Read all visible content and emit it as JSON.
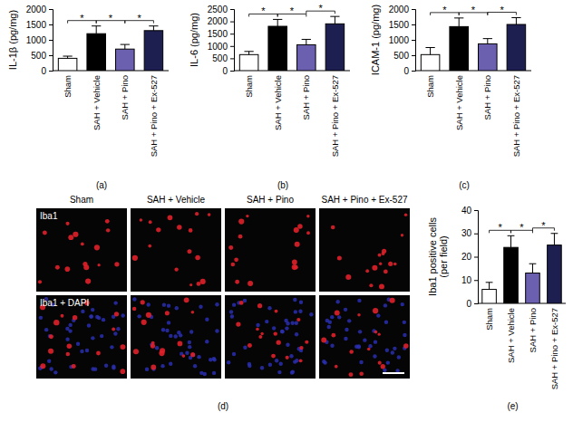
{
  "chart_data": [
    {
      "type": "bar",
      "caption": "(a)",
      "y_label": [
        "IL-1β (pg/mg)"
      ],
      "categories": [
        "Sham",
        "SAH + Vehicle",
        "SAH + Pino",
        "SAH + Pino + Ex-527"
      ],
      "values": [
        400,
        1200,
        700,
        1300
      ],
      "errors": [
        70,
        250,
        150,
        150
      ],
      "colors": [
        "#ffffff",
        "#000000",
        "#6b5fb0",
        "#1c1f4f"
      ],
      "ylim": [
        0,
        2000
      ],
      "yticks": [
        0,
        500,
        1000,
        1500,
        2000
      ],
      "annotations": [
        {
          "from": 0,
          "to": 1,
          "text": "*"
        },
        {
          "from": 1,
          "to": 2,
          "text": "*"
        },
        {
          "from": 2,
          "to": 3,
          "text": "*"
        }
      ]
    },
    {
      "type": "bar",
      "caption": "(b)",
      "y_label": [
        "IL-6 (pg/mg)"
      ],
      "categories": [
        "Sham",
        "SAH + Vehicle",
        "SAH + Pino",
        "SAH + Pino + Ex-527"
      ],
      "values": [
        650,
        1800,
        1050,
        1900
      ],
      "errors": [
        130,
        280,
        220,
        300
      ],
      "colors": [
        "#ffffff",
        "#000000",
        "#6b5fb0",
        "#1c1f4f"
      ],
      "ylim": [
        0,
        2500
      ],
      "yticks": [
        0,
        500,
        1000,
        1500,
        2000,
        2500
      ],
      "annotations": [
        {
          "from": 0,
          "to": 1,
          "text": "*"
        },
        {
          "from": 1,
          "to": 2,
          "text": "*"
        },
        {
          "from": 2,
          "to": 3,
          "text": "*"
        }
      ]
    },
    {
      "type": "bar",
      "caption": "(c)",
      "y_label": [
        "ICAM-1 (pg/mg)"
      ],
      "categories": [
        "Sham",
        "SAH + Vehicle",
        "SAH + Pino",
        "SAH + Pino + Ex-527"
      ],
      "values": [
        520,
        1430,
        870,
        1500
      ],
      "errors": [
        230,
        280,
        170,
        220
      ],
      "colors": [
        "#ffffff",
        "#000000",
        "#6b5fb0",
        "#1c1f4f"
      ],
      "ylim": [
        0,
        2000
      ],
      "yticks": [
        0,
        500,
        1000,
        1500,
        2000
      ],
      "annotations": [
        {
          "from": 0,
          "to": 1,
          "text": "*"
        },
        {
          "from": 1,
          "to": 2,
          "text": "*"
        },
        {
          "from": 2,
          "to": 3,
          "text": "*"
        }
      ]
    },
    {
      "type": "bar",
      "caption": "(e)",
      "y_label": [
        "Iba1 positive cells",
        "(per field)"
      ],
      "categories": [
        "Sham",
        "SAH + Vehicle",
        "SAH + Pino",
        "SAH + Pino + Ex-527"
      ],
      "values": [
        6,
        24,
        13,
        25
      ],
      "errors": [
        3,
        5,
        4,
        5
      ],
      "colors": [
        "#ffffff",
        "#000000",
        "#6b5fb0",
        "#1c1f4f"
      ],
      "ylim": [
        0,
        40
      ],
      "yticks": [
        0,
        10,
        20,
        30,
        40
      ],
      "annotations": [
        {
          "from": 0,
          "to": 1,
          "text": "*"
        },
        {
          "from": 1,
          "to": 2,
          "text": "*"
        },
        {
          "from": 2,
          "to": 3,
          "text": "*"
        }
      ]
    }
  ],
  "micrograph": {
    "caption": "(d)",
    "columns": [
      "Sham",
      "SAH + Vehicle",
      "SAH + Pino",
      "SAH + Pino + Ex-527"
    ],
    "rows": [
      "Iba1",
      "Iba1 + DAPI"
    ]
  }
}
